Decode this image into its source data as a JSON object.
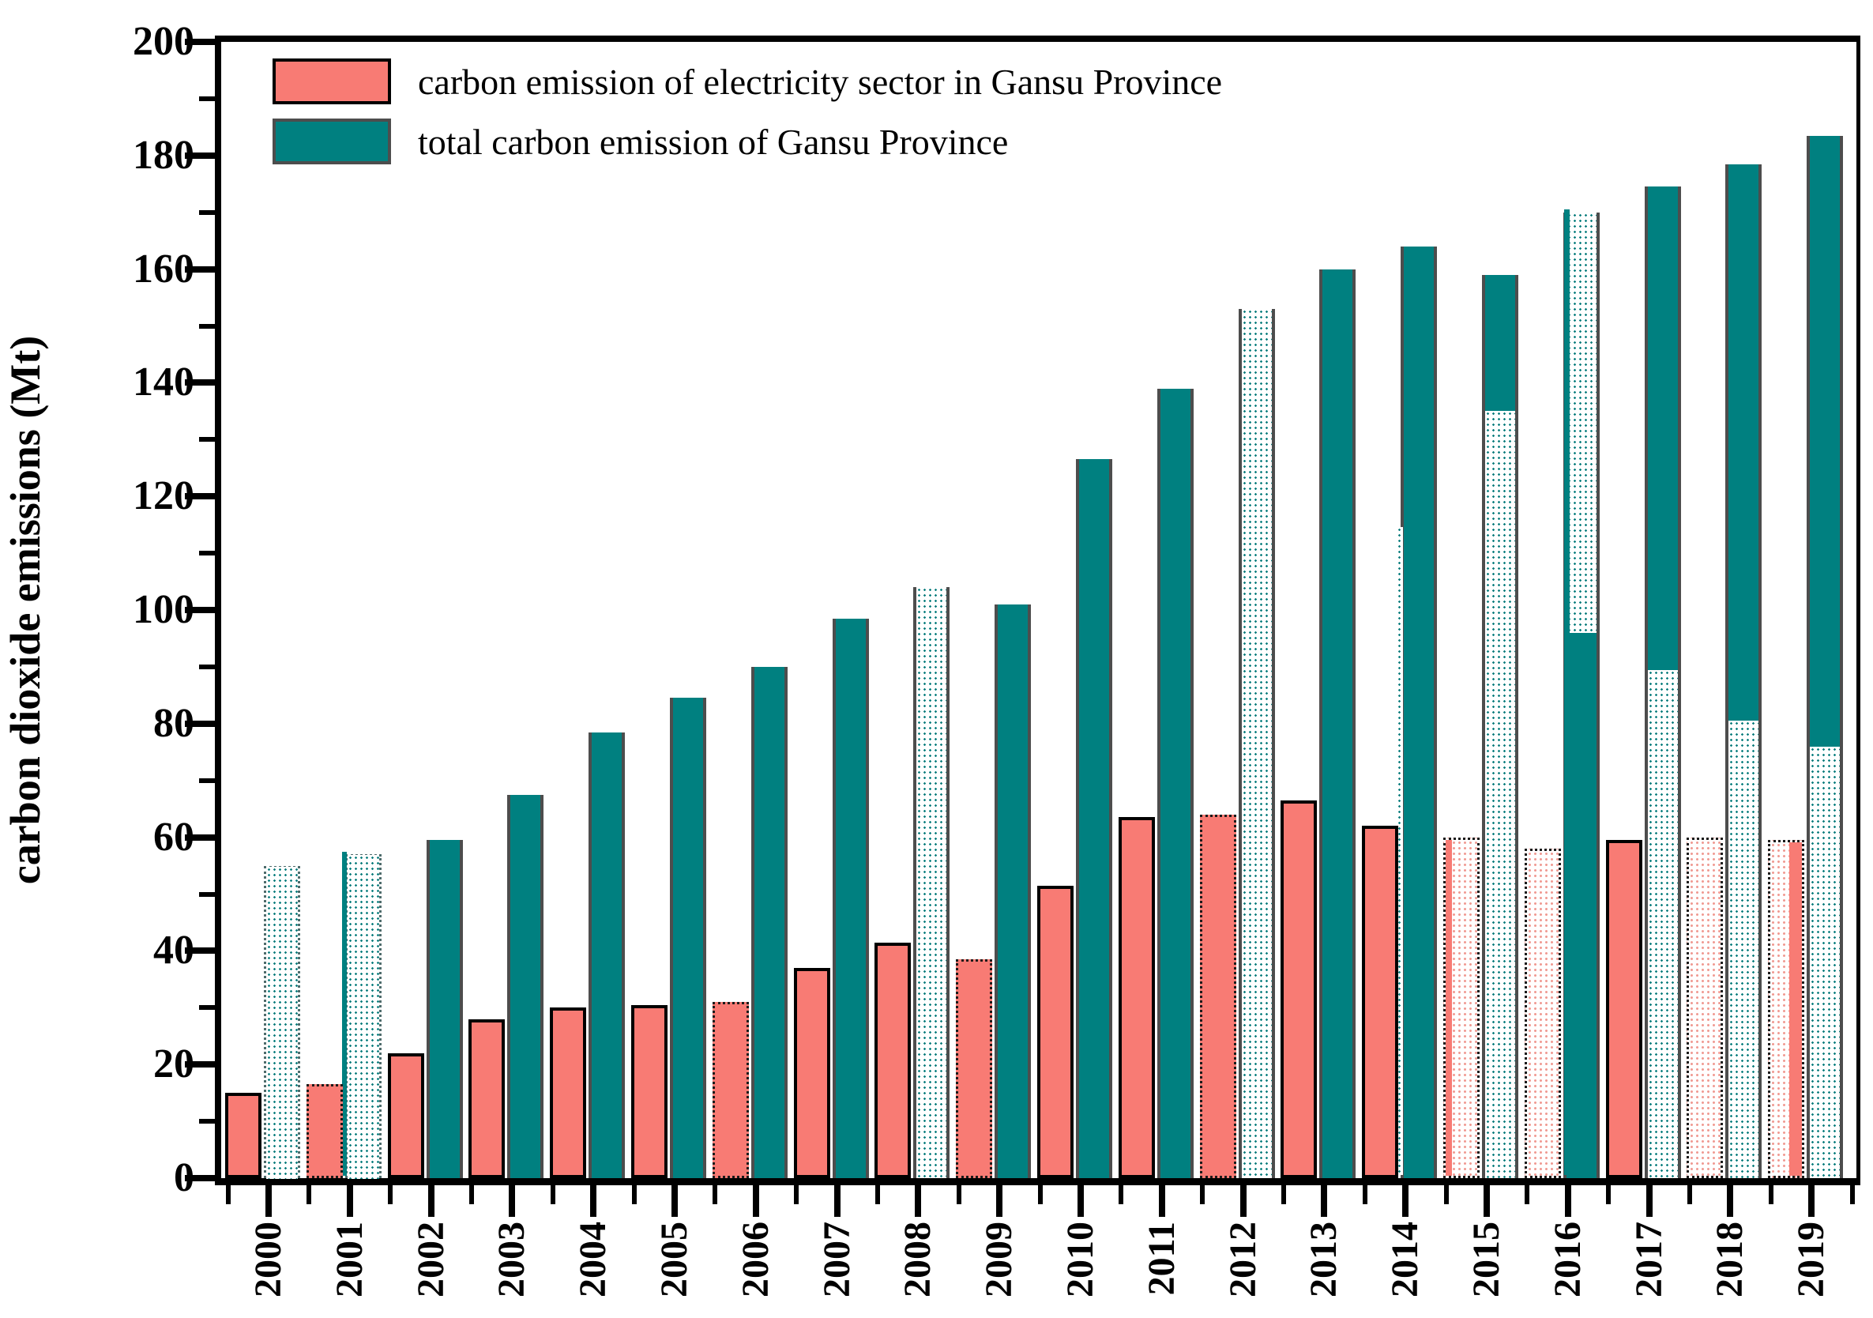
{
  "colors": {
    "teal": "#008080",
    "red": "#f87b74",
    "teal_outline": "#4d4d4d",
    "red_outline": "#000000",
    "axis": "#000000"
  },
  "legend": [
    {
      "label": "carbon emission of electricity sector in Gansu Province",
      "swatch": "red"
    },
    {
      "label": "total carbon emission of Gansu Province",
      "swatch": "teal"
    }
  ],
  "chart_data": {
    "type": "bar",
    "title": "",
    "ylabel": "carbon dioxide emissions (Mt)",
    "xlabel": "",
    "ylim": [
      0,
      200
    ],
    "y_major_ticks": [
      0,
      20,
      40,
      60,
      80,
      100,
      120,
      140,
      160,
      180,
      200
    ],
    "y_minor_step": 10,
    "grid": false,
    "legend_position": "top-left inside plot",
    "categories": [
      "2000",
      "2001",
      "2002",
      "2003",
      "2004",
      "2005",
      "2006",
      "2007",
      "2008",
      "2009",
      "2010",
      "2011",
      "2012",
      "2013",
      "2014",
      "2015",
      "2016",
      "2017",
      "2018",
      "2019"
    ],
    "series": [
      {
        "name": "carbon emission of electricity sector in Gansu Province",
        "values": [
          15,
          16.5,
          22,
          28,
          30,
          30.5,
          31,
          37,
          41.5,
          38.5,
          51.5,
          63.5,
          64,
          66.5,
          62,
          60,
          58,
          59.5,
          60,
          59.5
        ]
      },
      {
        "name": "total carbon emission of Gansu Province",
        "values": [
          55,
          57,
          59.5,
          67.5,
          78.5,
          84.5,
          90,
          98.5,
          104,
          101,
          126.5,
          139,
          153,
          160,
          164,
          159,
          170,
          174.5,
          178.5,
          183.5
        ]
      }
    ],
    "years": [
      {
        "label": "2000",
        "red": {
          "v": 15,
          "outline": "solid-black",
          "fill": "solid-red"
        },
        "teal": {
          "outline": "dotted-gray",
          "segments": [
            {
              "fill": "stipple-teal",
              "from": 0,
              "to": 55
            }
          ]
        }
      },
      {
        "label": "2001",
        "red": {
          "v": 16.5,
          "outline": "dotted-black",
          "fill": "solid-red"
        },
        "teal": {
          "outline": "dotted-gray",
          "segments": [
            {
              "fill": "stipple-teal",
              "from": 0,
              "to": 57
            }
          ],
          "sliver": {
            "side": "outside-left",
            "fill": "solid-teal",
            "to": 57,
            "w": 6
          }
        }
      },
      {
        "label": "2002",
        "red": {
          "v": 22,
          "outline": "solid-black",
          "fill": "solid-red"
        },
        "teal": {
          "outline": "solid-gray",
          "segments": [
            {
              "fill": "solid-teal",
              "from": 0,
              "to": 59.5
            }
          ]
        }
      },
      {
        "label": "2003",
        "red": {
          "v": 28,
          "outline": "solid-black",
          "fill": "solid-red"
        },
        "teal": {
          "outline": "solid-gray",
          "segments": [
            {
              "fill": "solid-teal",
              "from": 0,
              "to": 67.5
            }
          ]
        }
      },
      {
        "label": "2004",
        "red": {
          "v": 30,
          "outline": "solid-black",
          "fill": "solid-red"
        },
        "teal": {
          "outline": "solid-gray",
          "segments": [
            {
              "fill": "solid-teal",
              "from": 0,
              "to": 78.5
            }
          ]
        }
      },
      {
        "label": "2005",
        "red": {
          "v": 30.5,
          "outline": "solid-black",
          "fill": "solid-red"
        },
        "teal": {
          "outline": "solid-gray",
          "segments": [
            {
              "fill": "solid-teal",
              "from": 0,
              "to": 84.5
            }
          ]
        }
      },
      {
        "label": "2006",
        "red": {
          "v": 31,
          "outline": "dotted-black",
          "fill": "solid-red"
        },
        "teal": {
          "outline": "solid-gray",
          "segments": [
            {
              "fill": "solid-teal",
              "from": 0,
              "to": 90
            }
          ]
        }
      },
      {
        "label": "2007",
        "red": {
          "v": 37,
          "outline": "solid-black",
          "fill": "solid-red"
        },
        "teal": {
          "outline": "solid-gray",
          "segments": [
            {
              "fill": "solid-teal",
              "from": 0,
              "to": 98.5
            }
          ]
        }
      },
      {
        "label": "2008",
        "red": {
          "v": 41.5,
          "outline": "solid-black",
          "fill": "solid-red"
        },
        "teal": {
          "outline": "solid-gray",
          "segments": [
            {
              "fill": "stipple-teal",
              "from": 0,
              "to": 104
            }
          ]
        }
      },
      {
        "label": "2009",
        "red": {
          "v": 38.5,
          "outline": "dotted-black",
          "fill": "solid-red"
        },
        "teal": {
          "outline": "solid-gray",
          "segments": [
            {
              "fill": "solid-teal",
              "from": 0,
              "to": 101
            }
          ]
        }
      },
      {
        "label": "2010",
        "red": {
          "v": 51.5,
          "outline": "solid-black",
          "fill": "solid-red"
        },
        "teal": {
          "outline": "solid-gray",
          "segments": [
            {
              "fill": "solid-teal",
              "from": 0,
              "to": 126.5
            }
          ]
        }
      },
      {
        "label": "2011",
        "red": {
          "v": 63.5,
          "outline": "solid-black",
          "fill": "solid-red"
        },
        "teal": {
          "outline": "solid-gray",
          "segments": [
            {
              "fill": "solid-teal",
              "from": 0,
              "to": 139
            }
          ]
        }
      },
      {
        "label": "2012",
        "red": {
          "v": 64,
          "outline": "dotted-black",
          "fill": "solid-red"
        },
        "teal": {
          "outline": "solid-gray",
          "segments": [
            {
              "fill": "stipple-teal",
              "from": 0,
              "to": 153
            }
          ]
        }
      },
      {
        "label": "2013",
        "red": {
          "v": 66.5,
          "outline": "solid-black",
          "fill": "solid-red"
        },
        "teal": {
          "outline": "solid-gray",
          "segments": [
            {
              "fill": "solid-teal",
              "from": 0,
              "to": 160
            }
          ]
        }
      },
      {
        "label": "2014",
        "red": {
          "v": 62,
          "outline": "solid-black",
          "fill": "solid-red"
        },
        "teal": {
          "outline": "solid-gray",
          "segments": [
            {
              "fill": "solid-teal",
              "from": 0,
              "to": 164
            }
          ],
          "sliver": {
            "side": "outside-left",
            "fill": "stipple-teal",
            "to": 114,
            "w": 8
          }
        }
      },
      {
        "label": "2015",
        "red": {
          "v": 60,
          "outline": "dotted-black",
          "fill": "stipple-pink",
          "sliver": {
            "side": "left",
            "fill": "solid-red",
            "to": 60,
            "w": 8
          }
        },
        "teal": {
          "outline": "solid-gray",
          "segments": [
            {
              "fill": "stipple-teal",
              "from": 0,
              "to": 135
            },
            {
              "fill": "solid-teal",
              "from": 135,
              "to": 159
            }
          ]
        }
      },
      {
        "label": "2016",
        "red": {
          "v": 58,
          "outline": "dotted-black",
          "fill": "stipple-pink"
        },
        "teal": {
          "outline": "solid-gray",
          "segments": [
            {
              "fill": "solid-teal",
              "from": 0,
              "to": 96
            },
            {
              "fill": "stipple-teal",
              "from": 96,
              "to": 170
            }
          ],
          "sliver": {
            "side": "left",
            "fill": "solid-teal",
            "to": 170,
            "w": 7
          }
        }
      },
      {
        "label": "2017",
        "red": {
          "v": 59.5,
          "outline": "solid-black",
          "fill": "solid-red"
        },
        "teal": {
          "outline": "solid-gray",
          "segments": [
            {
              "fill": "stipple-teal",
              "from": 0,
              "to": 89.5
            },
            {
              "fill": "solid-teal",
              "from": 89.5,
              "to": 174.5
            }
          ]
        }
      },
      {
        "label": "2018",
        "red": {
          "v": 60,
          "outline": "dotted-black",
          "fill": "stipple-pink"
        },
        "teal": {
          "outline": "solid-gray",
          "segments": [
            {
              "fill": "stipple-teal",
              "from": 0,
              "to": 80.5
            },
            {
              "fill": "solid-teal",
              "from": 80.5,
              "to": 178.5
            }
          ]
        }
      },
      {
        "label": "2019",
        "red": {
          "v": 59.5,
          "outline": "dotted-black",
          "fill": "stipple-pink",
          "sliver": {
            "side": "right",
            "fill": "solid-red",
            "to": 59.5,
            "w": 16
          }
        },
        "teal": {
          "outline": "solid-gray",
          "segments": [
            {
              "fill": "stipple-teal",
              "from": 0,
              "to": 76
            },
            {
              "fill": "solid-teal",
              "from": 76,
              "to": 183.5
            }
          ]
        }
      }
    ]
  },
  "layout_note": "y axis 0-200 Mt, major ticks every 20, minor every 10; x years 2000-2019 rotated 90°"
}
